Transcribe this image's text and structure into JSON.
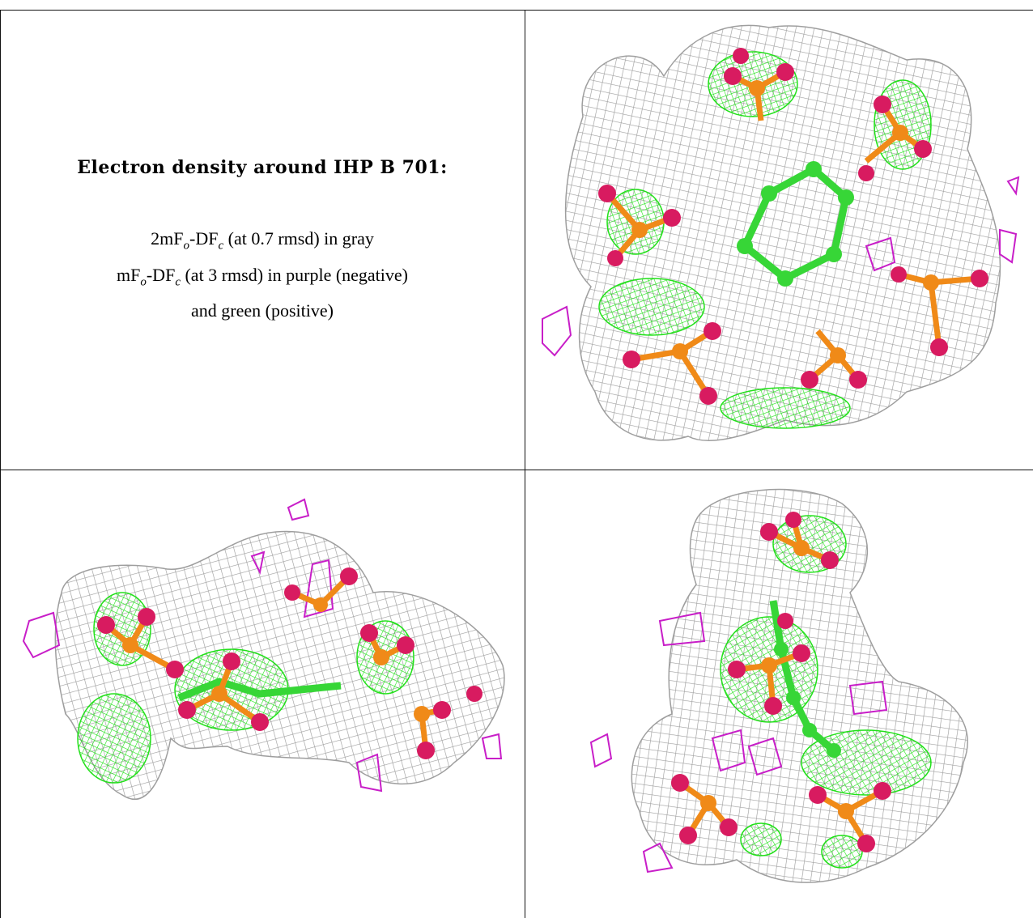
{
  "caption": {
    "title": "Electron density around IHP B 701:",
    "line1_a": "2mF",
    "line1_sub1": "o",
    "line1_b": "-DF",
    "line1_sub2": "c",
    "line1_c": " (at 0.7 rmsd) in gray",
    "line2_a": "mF",
    "line2_sub1": "o",
    "line2_b": "-DF",
    "line2_sub2": "c",
    "line2_c": " (at 3 rmsd) in purple (negative)",
    "line3": "and green (positive)"
  },
  "colors": {
    "gray_mesh": "#9e9e9e",
    "green_mesh": "#22e01a",
    "purple_mesh": "#c81ec8",
    "oxygen": "#d81b60",
    "phosphorus": "#f08a18",
    "carbon": "#37d637",
    "grid_line": "#111111"
  },
  "panels": [
    {
      "view": "top-right"
    },
    {
      "view": "bottom-left"
    },
    {
      "view": "bottom-right"
    }
  ]
}
